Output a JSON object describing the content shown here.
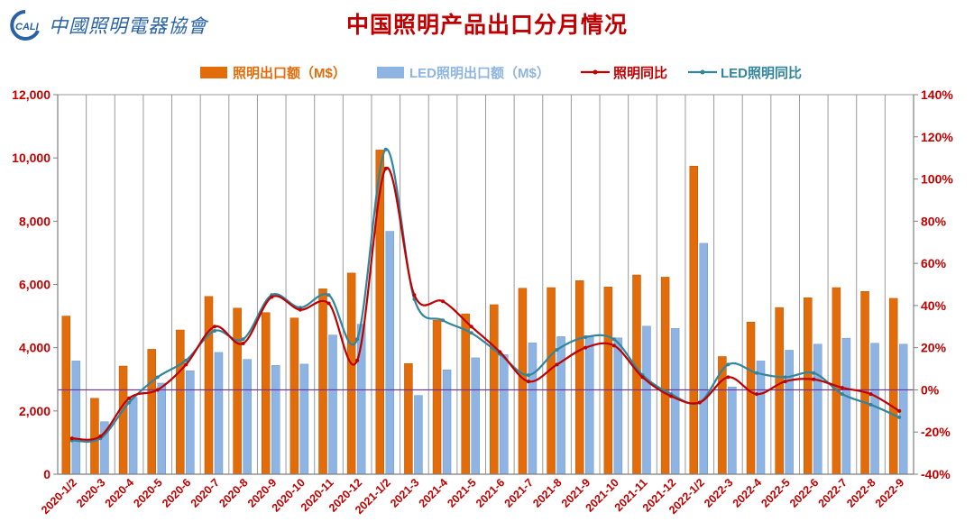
{
  "header": {
    "logo_text": "中國照明電器協會",
    "logo_mark_text": "CALI"
  },
  "chart_data": {
    "type": "bar",
    "title": "中国照明产品出口分月情况",
    "categories": [
      "2020-1/2",
      "2020-3",
      "2020-4",
      "2020-5",
      "2020-6",
      "2020-7",
      "2020-8",
      "2020-9",
      "2020-10",
      "2020-11",
      "2020-12",
      "2021-1/2",
      "2021-3",
      "2021-4",
      "2021-5",
      "2021-6",
      "2021-7",
      "2021-8",
      "2021-9",
      "2021-10",
      "2021-11",
      "2021-12",
      "2022-1/2",
      "2022-3",
      "2022-4",
      "2022-5",
      "2022-6",
      "2022-7",
      "2022-8",
      "2022-9"
    ],
    "y_left": {
      "ylim": [
        0,
        12000
      ],
      "ticks": [
        "0",
        "2,000",
        "4,000",
        "6,000",
        "8,000",
        "10,000",
        "12,000"
      ]
    },
    "y_right": {
      "ylim": [
        -40,
        140
      ],
      "ticks": [
        "-40%",
        "-20%",
        "0%",
        "20%",
        "40%",
        "60%",
        "80%",
        "100%",
        "120%",
        "140%"
      ]
    },
    "series": [
      {
        "name": "照明出口额（M$）",
        "type": "bar",
        "axis": "left",
        "color": "#e36c0a",
        "values": [
          5000,
          2400,
          3420,
          3950,
          4560,
          5620,
          5250,
          5110,
          4940,
          5860,
          6360,
          10250,
          3500,
          4870,
          5070,
          5360,
          5880,
          5900,
          6120,
          5920,
          6300,
          6230,
          9740,
          3720,
          4810,
          5270,
          5580,
          5900,
          5780,
          5560
        ]
      },
      {
        "name": "LED照明出口额（M$）",
        "type": "bar",
        "axis": "left",
        "color": "#8db4e2",
        "values": [
          3580,
          1660,
          2430,
          2880,
          3270,
          3850,
          3630,
          3440,
          3480,
          4400,
          4740,
          7680,
          2490,
          3300,
          3680,
          3780,
          4150,
          4350,
          4380,
          4310,
          4680,
          4610,
          7300,
          2760,
          3580,
          3920,
          4110,
          4300,
          4140,
          4110
        ]
      },
      {
        "name": "照明同比",
        "type": "line",
        "axis": "right",
        "color": "#c00000",
        "values": [
          -23,
          -22,
          -4,
          0,
          12,
          30,
          22,
          44,
          38,
          41,
          14,
          105,
          45,
          42,
          30,
          18,
          4,
          12,
          20,
          21,
          6,
          -3,
          -6,
          6,
          -2,
          4,
          5,
          1,
          -2,
          -10
        ]
      },
      {
        "name": "LED照明同比",
        "type": "line",
        "axis": "right",
        "color": "#31859c",
        "values": [
          -24,
          -23,
          -6,
          6,
          14,
          28,
          24,
          45,
          39,
          45,
          24,
          114,
          43,
          33,
          27,
          17,
          7,
          19,
          25,
          24,
          7,
          -2,
          -6,
          12,
          8,
          6,
          8,
          -2,
          -7,
          -13
        ]
      }
    ],
    "grid": "vertical",
    "legend": "top-center"
  }
}
